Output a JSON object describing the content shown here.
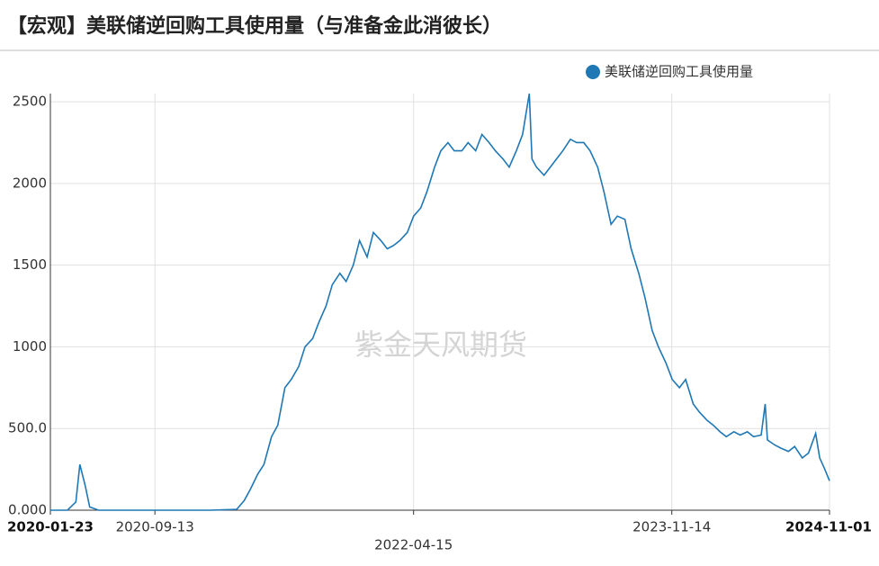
{
  "chart_data": {
    "type": "line",
    "title": "【宏观】美联储逆回购工具使用量（与准备金此消彼长）",
    "watermark": "紫金天风期货",
    "x": [
      "2020-01-23",
      "2020-03-01",
      "2020-03-20",
      "2020-03-29",
      "2020-04-10",
      "2020-04-20",
      "2020-05-10",
      "2020-09-13",
      "2021-01-15",
      "2021-03-15",
      "2021-04-01",
      "2021-04-15",
      "2021-05-01",
      "2021-05-15",
      "2021-06-01",
      "2021-06-15",
      "2021-07-01",
      "2021-07-15",
      "2021-08-01",
      "2021-08-15",
      "2021-09-01",
      "2021-09-15",
      "2021-10-01",
      "2021-10-15",
      "2021-11-01",
      "2021-11-15",
      "2021-12-01",
      "2021-12-15",
      "2022-01-01",
      "2022-01-15",
      "2022-02-01",
      "2022-02-15",
      "2022-03-01",
      "2022-03-15",
      "2022-04-01",
      "2022-04-15",
      "2022-05-01",
      "2022-05-15",
      "2022-06-01",
      "2022-06-15",
      "2022-07-01",
      "2022-07-15",
      "2022-08-01",
      "2022-08-15",
      "2022-09-01",
      "2022-09-15",
      "2022-10-01",
      "2022-10-15",
      "2022-11-01",
      "2022-11-15",
      "2022-12-01",
      "2022-12-15",
      "2022-12-30",
      "2023-01-05",
      "2023-01-15",
      "2023-02-01",
      "2023-02-15",
      "2023-03-01",
      "2023-03-15",
      "2023-04-01",
      "2023-04-15",
      "2023-05-01",
      "2023-05-15",
      "2023-06-01",
      "2023-06-15",
      "2023-07-01",
      "2023-07-15",
      "2023-08-01",
      "2023-08-15",
      "2023-09-01",
      "2023-09-15",
      "2023-10-01",
      "2023-10-15",
      "2023-11-01",
      "2023-11-15",
      "2023-12-01",
      "2023-12-15",
      "2024-01-01",
      "2024-01-15",
      "2024-02-01",
      "2024-02-15",
      "2024-03-01",
      "2024-03-15",
      "2024-04-01",
      "2024-04-15",
      "2024-05-01",
      "2024-05-15",
      "2024-06-01",
      "2024-06-10",
      "2024-06-15",
      "2024-07-01",
      "2024-07-15",
      "2024-08-01",
      "2024-08-15",
      "2024-09-01",
      "2024-09-15",
      "2024-10-01",
      "2024-10-10",
      "2024-10-20",
      "2024-11-01"
    ],
    "series": [
      {
        "name": "美联储逆回购工具使用量",
        "color": "#1f77b4",
        "values": [
          0,
          0,
          50,
          280,
          150,
          20,
          0,
          0,
          0,
          5,
          60,
          130,
          220,
          280,
          450,
          520,
          750,
          800,
          880,
          1000,
          1050,
          1150,
          1250,
          1380,
          1450,
          1400,
          1500,
          1650,
          1550,
          1700,
          1650,
          1600,
          1620,
          1650,
          1700,
          1800,
          1850,
          1950,
          2100,
          2200,
          2250,
          2200,
          2200,
          2250,
          2200,
          2300,
          2250,
          2200,
          2150,
          2100,
          2200,
          2300,
          2550,
          2150,
          2100,
          2050,
          2100,
          2150,
          2200,
          2270,
          2250,
          2250,
          2200,
          2100,
          1950,
          1750,
          1800,
          1780,
          1600,
          1450,
          1300,
          1100,
          1000,
          900,
          800,
          750,
          800,
          650,
          600,
          550,
          520,
          480,
          450,
          480,
          460,
          480,
          450,
          460,
          650,
          430,
          400,
          380,
          360,
          390,
          320,
          350,
          470,
          320,
          260,
          180
        ]
      }
    ],
    "xlim": [
      "2020-01-23",
      "2024-11-01"
    ],
    "xticks": [
      "2020-01-23",
      "2020-09-13",
      "2022-04-15",
      "2023-11-14",
      "2024-11-01"
    ],
    "ylim": [
      0,
      2550
    ],
    "yticks": [
      {
        "value": 0,
        "label": "0.000"
      },
      {
        "value": 500,
        "label": "500.0"
      },
      1000,
      1500,
      2000,
      2500
    ],
    "grid": true,
    "legend": "top-right"
  }
}
